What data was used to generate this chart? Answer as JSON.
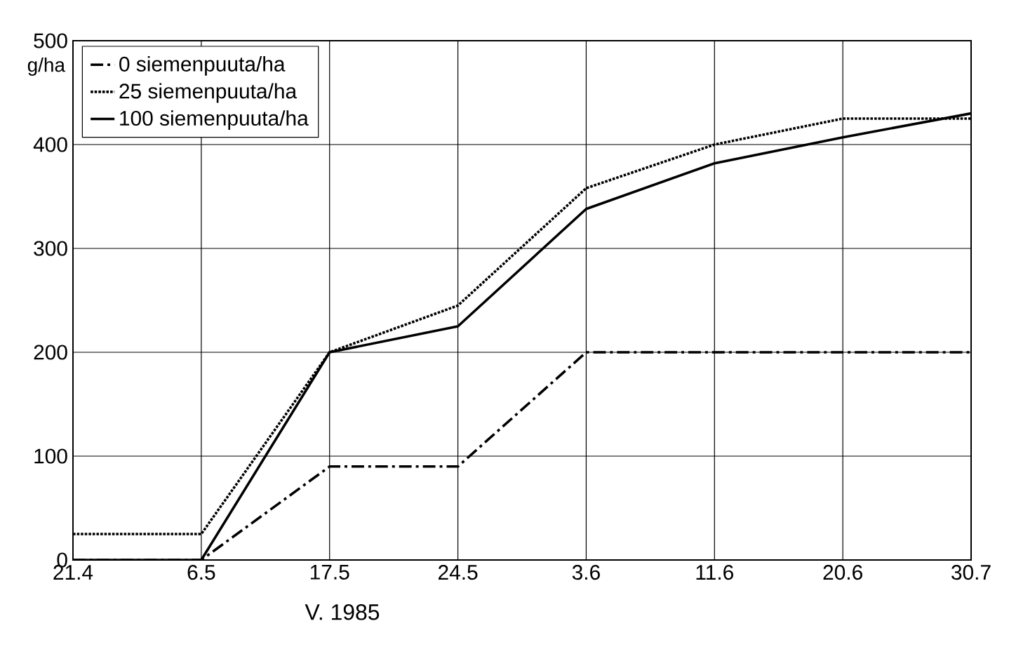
{
  "chart_data": {
    "type": "line",
    "xlabel": "V. 1985",
    "ylabel": "g/ha",
    "categories": [
      "21.4",
      "6.5",
      "17.5",
      "24.5",
      "3.6",
      "11.6",
      "20.6",
      "30.7"
    ],
    "series": [
      {
        "name": "0 siemenpuuta/ha",
        "color": "#000000",
        "line_style": "dashdot",
        "values": [
          0,
          0,
          90,
          90,
          200,
          200,
          200,
          200
        ]
      },
      {
        "name": "25 siemenpuuta/ha",
        "color": "#000000",
        "line_style": "dotted",
        "values": [
          25,
          25,
          200,
          245,
          358,
          400,
          425,
          425
        ]
      },
      {
        "name": "100 siemenpuuta/ha",
        "color": "#000000",
        "line_style": "solid",
        "values": [
          0,
          0,
          200,
          225,
          338,
          382,
          407,
          430
        ]
      }
    ],
    "ylim": [
      0,
      500
    ],
    "yticks": [
      0,
      100,
      200,
      300,
      400,
      500
    ],
    "grid": true,
    "legend": "top left",
    "marker": "none"
  }
}
